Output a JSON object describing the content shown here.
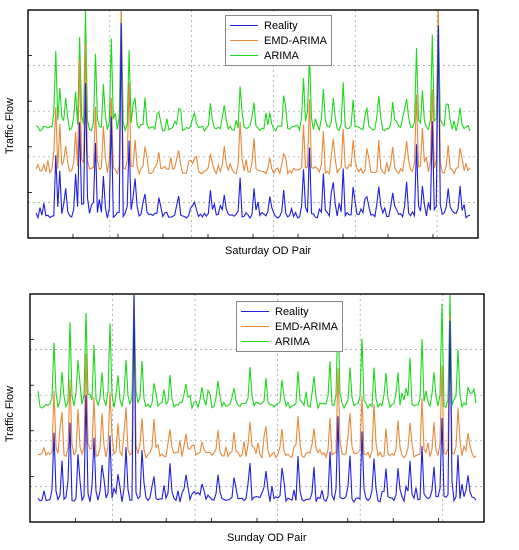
{
  "colors": {
    "reality": "#1f1fe0",
    "emd_arima": "#e8893a",
    "arima": "#1ed81e",
    "axis": "#000000",
    "grid": "#9a9a9a"
  },
  "chart_data": [
    {
      "type": "line",
      "xlabel": "Saturday OD Pair",
      "ylabel": "Traffic Flow",
      "grid": true,
      "legend_position": "top-center",
      "x": {
        "n": 220
      },
      "series": [
        {
          "name": "Reality",
          "baseline": 14,
          "values_note": "spiky series"
        },
        {
          "name": "EMD-ARIMA",
          "baseline": 45
        },
        {
          "name": "ARIMA",
          "baseline": 75
        }
      ],
      "spikes": [
        {
          "i": 10,
          "h": 45
        },
        {
          "i": 12,
          "h": 30
        },
        {
          "i": 15,
          "h": 20
        },
        {
          "i": 20,
          "h": 25
        },
        {
          "i": 22,
          "h": 70
        },
        {
          "i": 25,
          "h": 90
        },
        {
          "i": 30,
          "h": 50
        },
        {
          "i": 34,
          "h": 30
        },
        {
          "i": 38,
          "h": 60
        },
        {
          "i": 43,
          "h": 130
        },
        {
          "i": 47,
          "h": 55
        },
        {
          "i": 50,
          "h": 25
        },
        {
          "i": 55,
          "h": 15
        },
        {
          "i": 62,
          "h": 12
        },
        {
          "i": 72,
          "h": 14
        },
        {
          "i": 80,
          "h": 10
        },
        {
          "i": 88,
          "h": 12
        },
        {
          "i": 95,
          "h": 15
        },
        {
          "i": 103,
          "h": 30
        },
        {
          "i": 110,
          "h": 20
        },
        {
          "i": 118,
          "h": 10
        },
        {
          "i": 125,
          "h": 15
        },
        {
          "i": 135,
          "h": 30
        },
        {
          "i": 138,
          "h": 55
        },
        {
          "i": 145,
          "h": 25
        },
        {
          "i": 150,
          "h": 20
        },
        {
          "i": 155,
          "h": 30
        },
        {
          "i": 160,
          "h": 20
        },
        {
          "i": 167,
          "h": 15
        },
        {
          "i": 173,
          "h": 22
        },
        {
          "i": 180,
          "h": 15
        },
        {
          "i": 187,
          "h": 20
        },
        {
          "i": 192,
          "h": 50
        },
        {
          "i": 195,
          "h": 25
        },
        {
          "i": 200,
          "h": 60
        },
        {
          "i": 203,
          "h": 120
        },
        {
          "i": 208,
          "h": 20
        },
        {
          "i": 214,
          "h": 15
        }
      ],
      "legend": [
        "Reality",
        "EMD-ARIMA",
        "ARIMA"
      ],
      "ylim": [
        0,
        160
      ]
    },
    {
      "type": "line",
      "xlabel": "Sunday OD Pair",
      "ylabel": "Traffic Flow",
      "grid": true,
      "legend_position": "top-center",
      "x": {
        "n": 220
      },
      "series": [
        {
          "name": "Reality",
          "baseline": 14
        },
        {
          "name": "EMD-ARIMA",
          "baseline": 45
        },
        {
          "name": "ARIMA",
          "baseline": 80
        }
      ],
      "spikes": [
        {
          "i": 8,
          "h": 40
        },
        {
          "i": 12,
          "h": 25
        },
        {
          "i": 16,
          "h": 60
        },
        {
          "i": 20,
          "h": 30
        },
        {
          "i": 24,
          "h": 70
        },
        {
          "i": 28,
          "h": 40
        },
        {
          "i": 32,
          "h": 25
        },
        {
          "i": 36,
          "h": 50
        },
        {
          "i": 40,
          "h": 20
        },
        {
          "i": 44,
          "h": 35
        },
        {
          "i": 48,
          "h": 140
        },
        {
          "i": 52,
          "h": 30
        },
        {
          "i": 58,
          "h": 15
        },
        {
          "i": 66,
          "h": 20
        },
        {
          "i": 74,
          "h": 15
        },
        {
          "i": 82,
          "h": 10
        },
        {
          "i": 90,
          "h": 18
        },
        {
          "i": 98,
          "h": 15
        },
        {
          "i": 106,
          "h": 25
        },
        {
          "i": 114,
          "h": 20
        },
        {
          "i": 122,
          "h": 15
        },
        {
          "i": 130,
          "h": 25
        },
        {
          "i": 138,
          "h": 20
        },
        {
          "i": 146,
          "h": 30
        },
        {
          "i": 150,
          "h": 55
        },
        {
          "i": 156,
          "h": 25
        },
        {
          "i": 162,
          "h": 40
        },
        {
          "i": 168,
          "h": 30
        },
        {
          "i": 174,
          "h": 20
        },
        {
          "i": 180,
          "h": 25
        },
        {
          "i": 186,
          "h": 20
        },
        {
          "i": 192,
          "h": 35
        },
        {
          "i": 198,
          "h": 25
        },
        {
          "i": 202,
          "h": 65
        },
        {
          "i": 206,
          "h": 110
        },
        {
          "i": 210,
          "h": 30
        },
        {
          "i": 215,
          "h": 15
        }
      ],
      "legend": [
        "Reality",
        "EMD-ARIMA",
        "ARIMA"
      ],
      "ylim": [
        0,
        160
      ]
    }
  ]
}
